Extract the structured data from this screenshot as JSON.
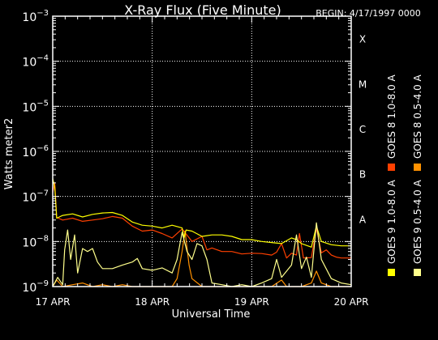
{
  "chart_data": {
    "type": "line",
    "title": "X-Ray Flux (Five Minute)",
    "begin_label": "BEGIN: 4/17/1997 0000",
    "xlabel": "Universal Time",
    "ylabel": "Watts meter2",
    "x_unit": "days since 17 Apr 1997 00:00 UT",
    "xlim": [
      0,
      3
    ],
    "x_ticks": [
      {
        "value": 0,
        "label": "17 APR"
      },
      {
        "value": 1,
        "label": "18 APR"
      },
      {
        "value": 2,
        "label": "19 APR"
      },
      {
        "value": 3,
        "label": "20 APR"
      }
    ],
    "yscale": "log",
    "ylim_exp": [
      -9,
      -3
    ],
    "y_ticks": [
      {
        "exp": -9,
        "base": "10",
        "power": "−9"
      },
      {
        "exp": -8,
        "base": "10",
        "power": "−8"
      },
      {
        "exp": -7,
        "base": "10",
        "power": "−7"
      },
      {
        "exp": -6,
        "base": "10",
        "power": "−6"
      },
      {
        "exp": -5,
        "base": "10",
        "power": "−5"
      },
      {
        "exp": -4,
        "base": "10",
        "power": "−4"
      },
      {
        "exp": -3,
        "base": "10",
        "power": "−3"
      }
    ],
    "flare_classes": [
      {
        "label": "A",
        "exp": -8
      },
      {
        "label": "B",
        "exp": -7
      },
      {
        "label": "C",
        "exp": -6
      },
      {
        "label": "M",
        "exp": -5
      },
      {
        "label": "X",
        "exp": -4
      }
    ],
    "grid": true,
    "legend_position": "right, rotated vertical",
    "series": [
      {
        "name": "GOES 8 1.0-8.0 A",
        "color": "#ff4000",
        "points": [
          [
            0,
            1.2e-07
          ],
          [
            0.02,
            2e-07
          ],
          [
            0.04,
            3.4e-08
          ],
          [
            0.1,
            3e-08
          ],
          [
            0.2,
            3.3e-08
          ],
          [
            0.3,
            2.8e-08
          ],
          [
            0.4,
            3e-08
          ],
          [
            0.5,
            3.2e-08
          ],
          [
            0.6,
            3.6e-08
          ],
          [
            0.7,
            3.3e-08
          ],
          [
            0.8,
            2.2e-08
          ],
          [
            0.9,
            1.7e-08
          ],
          [
            1.0,
            1.8e-08
          ],
          [
            1.1,
            1.5e-08
          ],
          [
            1.2,
            1.2e-08
          ],
          [
            1.3,
            1.9e-08
          ],
          [
            1.4,
            1e-08
          ],
          [
            1.5,
            1.3e-08
          ],
          [
            1.55,
            6.5e-09
          ],
          [
            1.6,
            7.2e-09
          ],
          [
            1.7,
            6e-09
          ],
          [
            1.8,
            6e-09
          ],
          [
            1.9,
            5.3e-09
          ],
          [
            2.0,
            5.5e-09
          ],
          [
            2.1,
            5.4e-09
          ],
          [
            2.2,
            5e-09
          ],
          [
            2.25,
            5.8e-09
          ],
          [
            2.3,
            9e-09
          ],
          [
            2.35,
            4.3e-09
          ],
          [
            2.4,
            5.5e-09
          ],
          [
            2.45,
            5e-09
          ],
          [
            2.48,
            1.5e-08
          ],
          [
            2.52,
            4.3e-09
          ],
          [
            2.6,
            4.4e-09
          ],
          [
            2.65,
            2e-08
          ],
          [
            2.7,
            5.6e-09
          ],
          [
            2.75,
            6.5e-09
          ],
          [
            2.8,
            5e-09
          ],
          [
            2.85,
            4.5e-09
          ],
          [
            2.9,
            4.3e-09
          ],
          [
            3.0,
            4.3e-09
          ]
        ]
      },
      {
        "name": "GOES 8 0.5-4.0 A",
        "color": "#ff9100",
        "points": [
          [
            0,
            1e-09
          ],
          [
            0.04,
            1.4e-09
          ],
          [
            0.1,
            1e-09
          ],
          [
            0.2,
            1.1e-09
          ],
          [
            0.3,
            1.2e-09
          ],
          [
            0.4,
            1e-09
          ],
          [
            0.5,
            1.1e-09
          ],
          [
            0.6,
            1e-09
          ],
          [
            0.7,
            1.1e-09
          ],
          [
            0.8,
            1e-09
          ],
          [
            0.9,
            1e-09
          ],
          [
            1.0,
            1e-09
          ],
          [
            1.2,
            1e-09
          ],
          [
            1.25,
            1.5e-09
          ],
          [
            1.3,
            6e-09
          ],
          [
            1.33,
            1.7e-08
          ],
          [
            1.37,
            3e-09
          ],
          [
            1.4,
            1.5e-09
          ],
          [
            1.5,
            1e-09
          ],
          [
            1.6,
            1e-09
          ],
          [
            1.9,
            1e-09
          ],
          [
            2.0,
            1e-09
          ],
          [
            2.2,
            1e-09
          ],
          [
            2.3,
            1.4e-09
          ],
          [
            2.35,
            1e-09
          ],
          [
            2.4,
            1e-09
          ],
          [
            2.5,
            1e-09
          ],
          [
            2.6,
            1.2e-09
          ],
          [
            2.65,
            2.2e-09
          ],
          [
            2.7,
            1.2e-09
          ],
          [
            2.8,
            1e-09
          ],
          [
            3.0,
            1e-09
          ]
        ]
      },
      {
        "name": "GOES 9 1.0-8.0 A",
        "color": "#ffff00",
        "points": [
          [
            0,
            2.5e-07
          ],
          [
            0.02,
            1.6e-07
          ],
          [
            0.04,
            3.3e-08
          ],
          [
            0.1,
            3.8e-08
          ],
          [
            0.2,
            4.1e-08
          ],
          [
            0.3,
            3.5e-08
          ],
          [
            0.4,
            4e-08
          ],
          [
            0.5,
            4.3e-08
          ],
          [
            0.6,
            4.4e-08
          ],
          [
            0.7,
            3.8e-08
          ],
          [
            0.8,
            2.7e-08
          ],
          [
            0.9,
            2.3e-08
          ],
          [
            1.0,
            2.2e-08
          ],
          [
            1.1,
            2e-08
          ],
          [
            1.2,
            2.3e-08
          ],
          [
            1.3,
            2e-08
          ],
          [
            1.32,
            1.2e-08
          ],
          [
            1.34,
            1.8e-08
          ],
          [
            1.4,
            1.7e-08
          ],
          [
            1.5,
            1.3e-08
          ],
          [
            1.6,
            1.4e-08
          ],
          [
            1.7,
            1.4e-08
          ],
          [
            1.8,
            1.3e-08
          ],
          [
            1.9,
            1.1e-08
          ],
          [
            2.0,
            1.1e-08
          ],
          [
            2.1,
            1e-08
          ],
          [
            2.2,
            9.5e-09
          ],
          [
            2.3,
            9e-09
          ],
          [
            2.4,
            1.2e-08
          ],
          [
            2.45,
            1.1e-08
          ],
          [
            2.5,
            9e-09
          ],
          [
            2.6,
            7.5e-09
          ],
          [
            2.65,
            2.2e-08
          ],
          [
            2.7,
            1e-08
          ],
          [
            2.8,
            8.5e-09
          ],
          [
            2.9,
            8e-09
          ],
          [
            3.0,
            8e-09
          ]
        ]
      },
      {
        "name": "GOES 9 0.5-4.0 A",
        "color": "#ffff8c",
        "points": [
          [
            0,
            1e-09
          ],
          [
            0.05,
            1.6e-09
          ],
          [
            0.1,
            1.1e-09
          ],
          [
            0.12,
            6.5e-09
          ],
          [
            0.15,
            1.8e-08
          ],
          [
            0.18,
            4e-09
          ],
          [
            0.22,
            1.4e-08
          ],
          [
            0.25,
            2e-09
          ],
          [
            0.3,
            7e-09
          ],
          [
            0.35,
            6e-09
          ],
          [
            0.4,
            7e-09
          ],
          [
            0.45,
            3.5e-09
          ],
          [
            0.5,
            2.5e-09
          ],
          [
            0.6,
            2.5e-09
          ],
          [
            0.7,
            3e-09
          ],
          [
            0.8,
            3.5e-09
          ],
          [
            0.85,
            4.2e-09
          ],
          [
            0.9,
            2.5e-09
          ],
          [
            1.0,
            2.3e-09
          ],
          [
            1.1,
            2.6e-09
          ],
          [
            1.2,
            2e-09
          ],
          [
            1.25,
            4e-09
          ],
          [
            1.3,
            1.6e-08
          ],
          [
            1.35,
            6e-09
          ],
          [
            1.4,
            4e-09
          ],
          [
            1.45,
            9e-09
          ],
          [
            1.5,
            8e-09
          ],
          [
            1.55,
            4e-09
          ],
          [
            1.6,
            1.2e-09
          ],
          [
            1.7,
            1.1e-09
          ],
          [
            1.8,
            1e-09
          ],
          [
            1.9,
            1.1e-09
          ],
          [
            2.0,
            1e-09
          ],
          [
            2.1,
            1.2e-09
          ],
          [
            2.2,
            1.5e-09
          ],
          [
            2.25,
            4e-09
          ],
          [
            2.3,
            1.6e-09
          ],
          [
            2.4,
            3e-09
          ],
          [
            2.45,
            1.4e-08
          ],
          [
            2.5,
            2.5e-09
          ],
          [
            2.55,
            4.5e-09
          ],
          [
            2.6,
            1.6e-09
          ],
          [
            2.65,
            2.6e-08
          ],
          [
            2.7,
            4e-09
          ],
          [
            2.8,
            1.5e-09
          ],
          [
            2.9,
            1.2e-09
          ],
          [
            3.0,
            1.1e-09
          ]
        ]
      }
    ]
  }
}
